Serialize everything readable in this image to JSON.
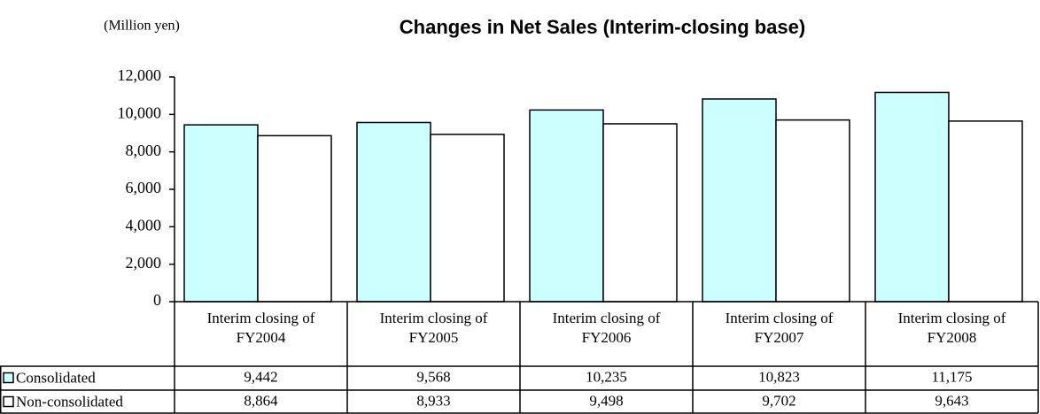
{
  "chart_data": {
    "type": "bar",
    "title": "Changes in Net Sales (Interim-closing base)",
    "unit_label": "(Million yen)",
    "categories": [
      "Interim closing of\nFY2004",
      "Interim closing of\nFY2005",
      "Interim closing of\nFY2006",
      "Interim closing of\nFY2007",
      "Interim closing of\nFY2008"
    ],
    "series": [
      {
        "name": "Consolidated",
        "color": "#ccffff",
        "values": [
          9442,
          9568,
          10235,
          10823,
          11175
        ],
        "value_labels": [
          "9,442",
          "9,568",
          "10,235",
          "10,823",
          "11,175"
        ]
      },
      {
        "name": "Non-consolidated",
        "color": "#ffffff",
        "values": [
          8864,
          8933,
          9498,
          9702,
          9643
        ],
        "value_labels": [
          "8,864",
          "8,933",
          "9,498",
          "9,702",
          "9,643"
        ]
      }
    ],
    "ylim": [
      0,
      12000
    ],
    "yticks": [
      0,
      {
        "value": 2000,
        "label": "2,000"
      },
      {
        "value": 4000,
        "label": "4,000"
      },
      {
        "value": 6000,
        "label": "6,000"
      },
      {
        "value": 8000,
        "label": "8,000"
      },
      {
        "value": 10000,
        "label": "10,000"
      },
      {
        "value": 12000,
        "label": "12,000"
      }
    ],
    "grid": false
  }
}
